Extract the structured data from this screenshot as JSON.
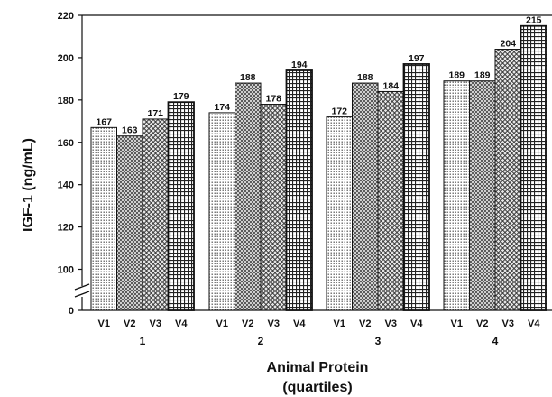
{
  "chart_data": {
    "type": "bar",
    "xlabel": "Animal Protein",
    "xlabel_sub": "(quartiles)",
    "ylabel": "IGF-1 (ng/mL)",
    "ylim": [
      0,
      220
    ],
    "axis_break": true,
    "yticks": [
      0,
      100,
      120,
      140,
      160,
      180,
      200,
      220
    ],
    "groups": [
      "1",
      "2",
      "3",
      "4"
    ],
    "series": [
      {
        "name": "V1",
        "pattern": "dots",
        "values": [
          167,
          174,
          172,
          189
        ]
      },
      {
        "name": "V2",
        "pattern": "crosshatch",
        "values": [
          163,
          188,
          188,
          189
        ]
      },
      {
        "name": "V3",
        "pattern": "diamond",
        "values": [
          171,
          178,
          184,
          204
        ]
      },
      {
        "name": "V4",
        "pattern": "grid",
        "values": [
          179,
          194,
          197,
          215
        ]
      }
    ],
    "grid": false,
    "legend": "none"
  }
}
